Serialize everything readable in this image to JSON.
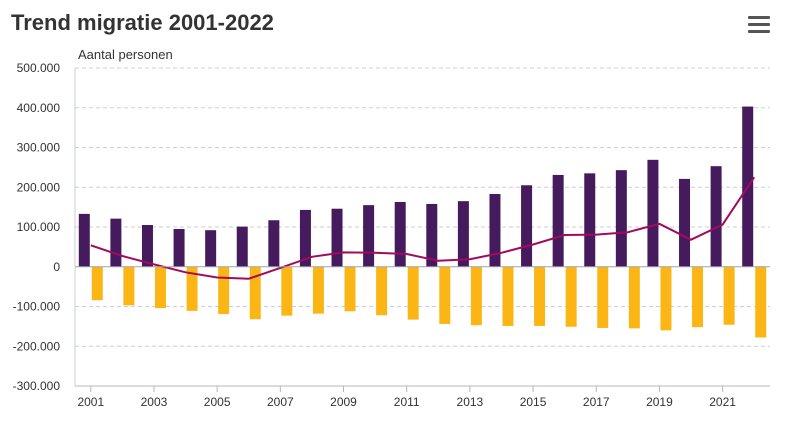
{
  "chart_data": {
    "type": "bar",
    "title": "Trend migratie 2001-2022",
    "ylabel": "Aantal personen",
    "xlabel": "",
    "ylim": [
      -300000,
      500000
    ],
    "yticks": [
      500000,
      400000,
      300000,
      200000,
      100000,
      0,
      -100000,
      -200000,
      -300000
    ],
    "ytick_labels": [
      "500.000",
      "400.000",
      "300.000",
      "200.000",
      "100.000",
      "0",
      "-100.000",
      "-200.000",
      "-300.000"
    ],
    "categories": [
      "2001",
      "2002",
      "2003",
      "2004",
      "2005",
      "2006",
      "2007",
      "2008",
      "2009",
      "2010",
      "2011",
      "2012",
      "2013",
      "2014",
      "2015",
      "2016",
      "2017",
      "2018",
      "2019",
      "2020",
      "2021",
      "2022"
    ],
    "xtick_labels": [
      "2001",
      "2003",
      "2005",
      "2007",
      "2009",
      "2011",
      "2013",
      "2015",
      "2017",
      "2019",
      "2021"
    ],
    "grid": true,
    "series": [
      {
        "type": "bar",
        "color": "#461b5e",
        "values": [
          133000,
          121000,
          105000,
          95000,
          92000,
          101000,
          117000,
          143000,
          146000,
          155000,
          163000,
          158000,
          165000,
          183000,
          205000,
          231000,
          235000,
          243000,
          269000,
          221000,
          253000,
          403000
        ]
      },
      {
        "type": "bar",
        "color": "#fbb616",
        "values": [
          -84000,
          -97000,
          -104000,
          -111000,
          -119000,
          -132000,
          -123000,
          -118000,
          -112000,
          -122000,
          -133000,
          -144000,
          -147000,
          -149000,
          -149000,
          -151000,
          -154000,
          -155000,
          -160000,
          -152000,
          -146000,
          -178000
        ]
      },
      {
        "type": "line",
        "color": "#a30a5d",
        "values": [
          54000,
          27000,
          6000,
          -14000,
          -27000,
          -30000,
          -3000,
          25000,
          36000,
          35000,
          32000,
          15000,
          19000,
          35000,
          56000,
          80000,
          81000,
          87000,
          108000,
          68000,
          106000,
          225000
        ]
      }
    ]
  },
  "ui": {
    "menu_icon": "hamburger-menu-icon"
  }
}
